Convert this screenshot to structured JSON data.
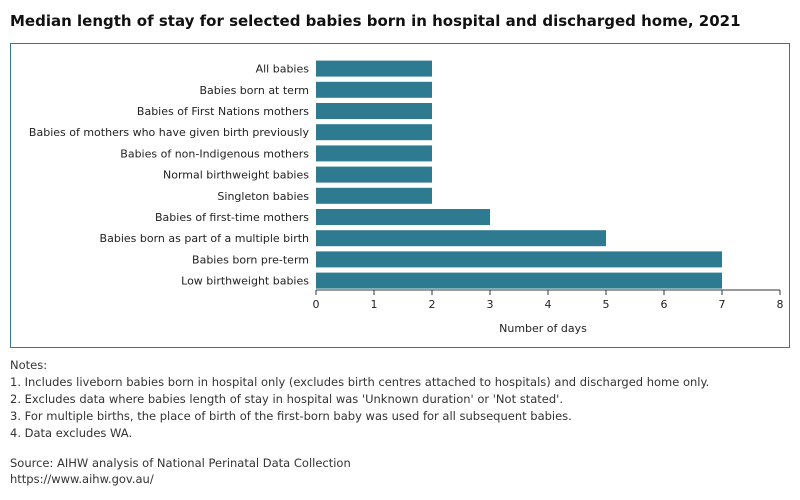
{
  "title": "Median length of stay for selected babies born in hospital and discharged home, 2021",
  "colors": {
    "bar": "#2e7a91",
    "frame": "#2e7a91",
    "axis": "#333333",
    "text": "#222222"
  },
  "chart_data": {
    "type": "bar",
    "orientation": "horizontal",
    "categories": [
      "All babies",
      "Babies born at term",
      "Babies of First Nations mothers",
      "Babies of mothers who have given birth previously",
      "Babies of non-Indigenous mothers",
      "Normal birthweight babies",
      "Singleton babies",
      "Babies of first-time mothers",
      "Babies born as part of a multiple birth",
      "Babies born pre-term",
      "Low birthweight babies"
    ],
    "values": [
      2,
      2,
      2,
      2,
      2,
      2,
      2,
      3,
      5,
      7,
      7
    ],
    "xlabel": "Number of days",
    "ylabel": "",
    "xlim": [
      0,
      8
    ],
    "xticks": [
      "0",
      "1",
      "2",
      "3",
      "4",
      "5",
      "6",
      "7",
      "8"
    ],
    "grid": false,
    "legend": "none"
  },
  "notes": {
    "heading": "Notes:",
    "items": [
      "1. Includes liveborn babies born in hospital only (excludes birth centres attached to hospitals) and discharged home only.",
      "2. Excludes data where babies length of stay in hospital was 'Unknown duration' or 'Not stated'.",
      "3. For multiple births, the place of birth of the first-born baby was used for all subsequent babies.",
      "4. Data excludes WA."
    ]
  },
  "source": {
    "line": "Source: AIHW analysis of National Perinatal Data Collection",
    "url": "https://www.aihw.gov.au/"
  }
}
